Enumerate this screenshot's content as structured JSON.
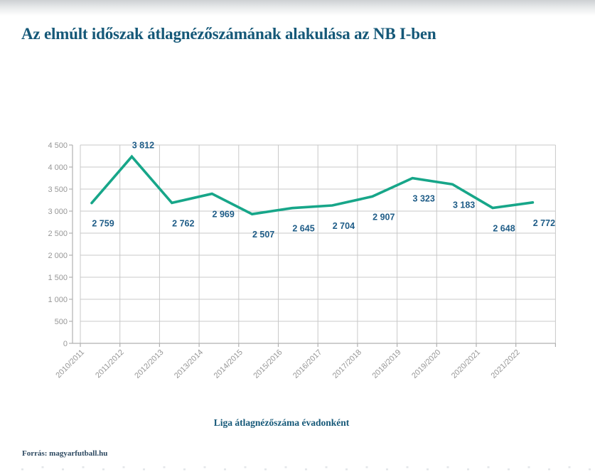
{
  "page": {
    "title": "Az elmúlt időszak átlagnézőszámának alakulása az NB I-ben",
    "source": "Forrás: magyarfutball.hu"
  },
  "chart_data": {
    "type": "line",
    "title": "Az elmúlt időszak átlagnézőszámának alakulása az NB I-ben",
    "caption": "Liga átlagnézőszáma évadonként",
    "categories": [
      "2010/2011",
      "2011/2012",
      "2012/2013",
      "2013/2014",
      "2014/2015",
      "2015/2016",
      "2016/2017",
      "2017/2018",
      "2018/2019",
      "2019/2020",
      "2020/2021",
      "2021/2022"
    ],
    "series": [
      {
        "name": "Liga átlagnézőszáma évadonként",
        "values": [
          2759,
          3812,
          2762,
          2969,
          2507,
          2645,
          2704,
          2907,
          3323,
          3183,
          2648,
          2772
        ]
      }
    ],
    "point_labels": [
      "2 759",
      "3 812",
      "2 762",
      "2 969",
      "2 507",
      "2 645",
      "2 704",
      "2 907",
      "3 323",
      "3 183",
      "2 648",
      "2 772"
    ],
    "ylim": [
      0,
      4500
    ],
    "ytick_interval": 500,
    "ytick_labels": [
      "0",
      "500",
      "1 000",
      "1 500",
      "2 000",
      "2 500",
      "3 000",
      "3 500",
      "4 000",
      "4 500"
    ],
    "grid": true,
    "legend": "none",
    "colors": {
      "line": "#17a689",
      "point_label": "#1e5c87",
      "axis_text": "#979797",
      "gridline": "#c9c9c9",
      "axis_line": "#b0b0b0",
      "title": "#155878",
      "caption": "#155878"
    },
    "layout_hints": {
      "x_labels_rotation_deg": 45,
      "labels_above_indices": [
        1
      ],
      "line_drawn_offset_above_labeled_values": 425
    }
  }
}
